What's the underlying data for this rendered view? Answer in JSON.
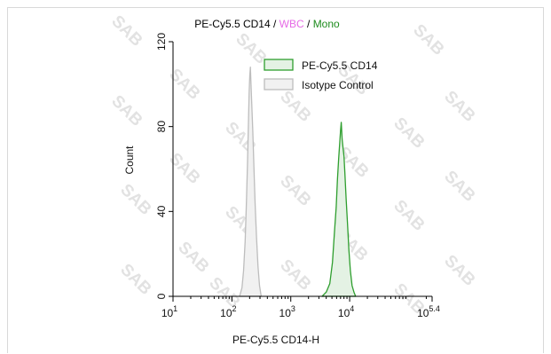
{
  "chart_data": {
    "type": "area",
    "title_parts": [
      {
        "text": "PE-Cy5.5 CD14",
        "color": "#000000"
      },
      {
        "text": " / ",
        "color": "#000000"
      },
      {
        "text": "WBC",
        "color": "#e66be6"
      },
      {
        "text": " / ",
        "color": "#000000"
      },
      {
        "text": "Mono",
        "color": "#1e8c1e"
      }
    ],
    "xlabel": "PE-Cy5.5 CD14-H",
    "ylabel": "Count",
    "x_scale": "log",
    "xlim": [
      10,
      251189
    ],
    "ylim": [
      0,
      120
    ],
    "x_ticks": [
      {
        "value": 10,
        "base": "10",
        "exp": "1"
      },
      {
        "value": 100,
        "base": "10",
        "exp": "2"
      },
      {
        "value": 1000,
        "base": "10",
        "exp": "3"
      },
      {
        "value": 10000,
        "base": "10",
        "exp": "4"
      },
      {
        "value": 251189,
        "base": "10",
        "exp": "5.4"
      }
    ],
    "y_ticks": [
      "0",
      "40",
      "80",
      "120"
    ],
    "legend_position": "top-right",
    "series": [
      {
        "name": "PE-Cy5.5 CD14",
        "line_color": "#2e9e2e",
        "fill_color": "#e4f2e4",
        "x": [
          3400,
          4000,
          4600,
          5100,
          5500,
          5900,
          6200,
          6500,
          6800,
          7000,
          7200,
          7450,
          7700,
          8000,
          8300,
          8700,
          9200,
          9700,
          10300,
          11000,
          11800,
          12600
        ],
        "y": [
          0,
          2,
          6,
          16,
          30,
          42,
          55,
          65,
          73,
          78,
          82,
          74,
          70,
          66,
          58,
          46,
          34,
          22,
          12,
          5,
          2,
          0
        ]
      },
      {
        "name": "Isotype Control",
        "line_color": "#bdbdbd",
        "fill_color": "#f1f1f1",
        "x": [
          135,
          148,
          158,
          168,
          176,
          184,
          190,
          196,
          201,
          206,
          211,
          218,
          226,
          236,
          248,
          262,
          278,
          295,
          315
        ],
        "y": [
          0,
          4,
          12,
          26,
          44,
          62,
          80,
          96,
          104,
          108,
          100,
          90,
          78,
          62,
          44,
          28,
          14,
          5,
          0
        ]
      }
    ]
  },
  "watermark": "SAB"
}
